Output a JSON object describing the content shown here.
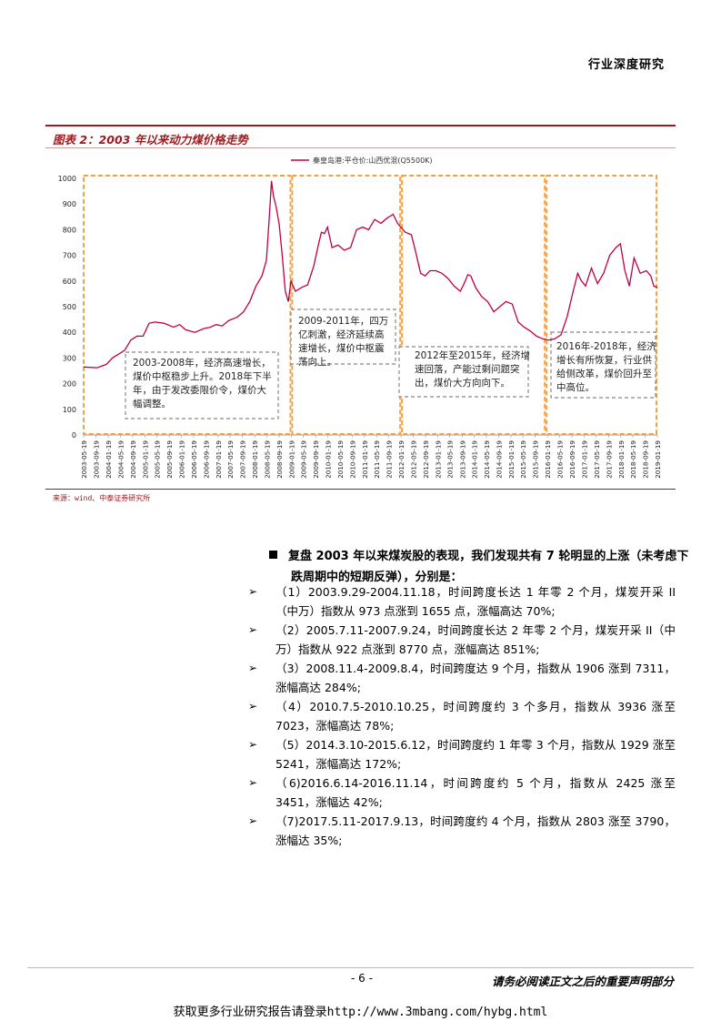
{
  "header": {
    "label": "行业深度研究"
  },
  "figure": {
    "title": "图表 2：2003 年以来动力煤价格走势",
    "source": "来源：wind、中泰证券研究所"
  },
  "chart_data": {
    "type": "line",
    "legend": "秦皇岛港:平仓价:山西优混(Q5500K)",
    "legend_position": "top-center",
    "ylim": [
      0,
      1000
    ],
    "yticks": [
      "0",
      "100",
      "200",
      "300",
      "400",
      "500",
      "600",
      "700",
      "800",
      "900",
      "1000"
    ],
    "xticks": [
      "2003-05-19",
      "2003-09-19",
      "2004-01-19",
      "2004-05-19",
      "2004-09-19",
      "2005-01-19",
      "2005-05-19",
      "2005-09-19",
      "2006-01-19",
      "2006-05-19",
      "2006-09-19",
      "2007-01-19",
      "2007-05-19",
      "2007-09-19",
      "2008-01-19",
      "2008-05-19",
      "2008-09-19",
      "2009-01-19",
      "2009-05-19",
      "2009-09-19",
      "2010-01-19",
      "2010-05-19",
      "2010-09-19",
      "2011-01-19",
      "2011-05-19",
      "2011-09-19",
      "2012-01-19",
      "2012-05-19",
      "2012-09-19",
      "2013-01-19",
      "2013-05-19",
      "2013-09-19",
      "2014-01-19",
      "2014-05-19",
      "2014-09-19",
      "2015-01-19",
      "2015-05-19",
      "2015-09-19",
      "2016-01-19",
      "2016-05-19",
      "2016-09-19",
      "2017-01-19",
      "2017-05-19",
      "2017-09-19",
      "2018-01-19",
      "2018-05-19",
      "2018-09-19",
      "2019-01-19"
    ],
    "series": [
      {
        "name": "秦皇岛港:平仓价:山西优混(Q5500K)",
        "color": "#c00040",
        "points": [
          [
            "2003-05-19",
            265
          ],
          [
            "2003-10-01",
            262
          ],
          [
            "2004-01-01",
            275
          ],
          [
            "2004-03-01",
            300
          ],
          [
            "2004-05-01",
            315
          ],
          [
            "2004-07-01",
            330
          ],
          [
            "2004-09-01",
            370
          ],
          [
            "2004-11-01",
            385
          ],
          [
            "2005-01-01",
            385
          ],
          [
            "2005-03-01",
            435
          ],
          [
            "2005-05-01",
            440
          ],
          [
            "2005-08-01",
            435
          ],
          [
            "2005-11-01",
            420
          ],
          [
            "2006-01-01",
            430
          ],
          [
            "2006-03-01",
            410
          ],
          [
            "2006-06-01",
            400
          ],
          [
            "2006-09-01",
            415
          ],
          [
            "2006-11-01",
            420
          ],
          [
            "2007-01-01",
            430
          ],
          [
            "2007-03-01",
            425
          ],
          [
            "2007-05-01",
            445
          ],
          [
            "2007-08-01",
            460
          ],
          [
            "2007-10-01",
            480
          ],
          [
            "2007-12-01",
            520
          ],
          [
            "2008-02-01",
            580
          ],
          [
            "2008-04-01",
            620
          ],
          [
            "2008-05-15",
            680
          ],
          [
            "2008-06-15",
            860
          ],
          [
            "2008-07-05",
            990
          ],
          [
            "2008-07-25",
            930
          ],
          [
            "2008-08-20",
            890
          ],
          [
            "2008-09-20",
            820
          ],
          [
            "2008-10-20",
            700
          ],
          [
            "2008-11-20",
            560
          ],
          [
            "2008-12-20",
            520
          ],
          [
            "2009-01-15",
            600
          ],
          [
            "2009-03-01",
            560
          ],
          [
            "2009-05-01",
            575
          ],
          [
            "2009-07-01",
            585
          ],
          [
            "2009-09-01",
            660
          ],
          [
            "2009-10-15",
            740
          ],
          [
            "2009-11-15",
            790
          ],
          [
            "2009-12-15",
            785
          ],
          [
            "2010-01-15",
            810
          ],
          [
            "2010-03-01",
            730
          ],
          [
            "2010-05-01",
            740
          ],
          [
            "2010-07-01",
            720
          ],
          [
            "2010-09-01",
            730
          ],
          [
            "2010-11-01",
            800
          ],
          [
            "2011-01-01",
            810
          ],
          [
            "2011-03-01",
            800
          ],
          [
            "2011-05-01",
            840
          ],
          [
            "2011-07-01",
            825
          ],
          [
            "2011-09-01",
            845
          ],
          [
            "2011-11-01",
            860
          ],
          [
            "2011-12-15",
            825
          ],
          [
            "2012-01-15",
            810
          ],
          [
            "2012-03-01",
            790
          ],
          [
            "2012-05-01",
            780
          ],
          [
            "2012-06-15",
            710
          ],
          [
            "2012-08-01",
            630
          ],
          [
            "2012-09-15",
            620
          ],
          [
            "2012-11-01",
            640
          ],
          [
            "2013-01-01",
            640
          ],
          [
            "2013-03-01",
            630
          ],
          [
            "2013-05-01",
            610
          ],
          [
            "2013-07-01",
            580
          ],
          [
            "2013-09-01",
            560
          ],
          [
            "2013-10-15",
            595
          ],
          [
            "2013-11-15",
            625
          ],
          [
            "2013-12-15",
            620
          ],
          [
            "2014-02-01",
            575
          ],
          [
            "2014-04-01",
            540
          ],
          [
            "2014-06-01",
            520
          ],
          [
            "2014-08-01",
            480
          ],
          [
            "2014-10-01",
            500
          ],
          [
            "2014-12-01",
            520
          ],
          [
            "2015-02-01",
            510
          ],
          [
            "2015-04-01",
            440
          ],
          [
            "2015-06-01",
            420
          ],
          [
            "2015-08-01",
            405
          ],
          [
            "2015-10-01",
            385
          ],
          [
            "2015-12-01",
            375
          ],
          [
            "2016-02-01",
            370
          ],
          [
            "2016-04-01",
            375
          ],
          [
            "2016-06-01",
            390
          ],
          [
            "2016-08-01",
            460
          ],
          [
            "2016-10-01",
            560
          ],
          [
            "2016-11-15",
            630
          ],
          [
            "2016-12-15",
            605
          ],
          [
            "2017-02-01",
            580
          ],
          [
            "2017-04-01",
            650
          ],
          [
            "2017-06-01",
            590
          ],
          [
            "2017-08-01",
            630
          ],
          [
            "2017-10-01",
            700
          ],
          [
            "2017-12-01",
            730
          ],
          [
            "2018-01-15",
            745
          ],
          [
            "2018-03-01",
            640
          ],
          [
            "2018-04-15",
            580
          ],
          [
            "2018-06-01",
            690
          ],
          [
            "2018-08-01",
            630
          ],
          [
            "2018-10-01",
            640
          ],
          [
            "2018-11-15",
            620
          ],
          [
            "2018-12-15",
            580
          ],
          [
            "2019-01-19",
            575
          ]
        ]
      }
    ],
    "annotations": [
      {
        "text": "2003-2008年，经济高速增长，煤价中枢稳步上升。2018年下半年，由于发改委限价令，煤价大幅调整。"
      },
      {
        "text": "2009-2011年，四万亿刺激，经济延续高速增长，煤价中枢震荡向上。"
      },
      {
        "text": "2012年至2015年，经济增速回落，产能过剩问题突出，煤价大方向向下。"
      },
      {
        "text": "2016年-2018年，经济增长有所恢复，行业供给侧改革，煤价回升至中高位。"
      }
    ]
  },
  "body": {
    "lead": "复盘 2003 年以来煤炭股的表现，我们发现共有 7 轮明显的上涨（未考虑下跌周期中的短期反弹），分别是：",
    "items": [
      "（1）2003.9.29-2004.11.18，时间跨度长达 1 年零 2 个月，煤炭开采 II（中万）指数从 973 点涨到 1655 点，涨幅高达 70%;",
      "（2）2005.7.11-2007.9.24，时间跨度长达 2 年零 2 个月，煤炭开采 II（中万）指数从 922 点涨到 8770 点，涨幅高达 851%;",
      "（3）2008.11.4-2009.8.4，时间跨度达 9 个月，指数从 1906 涨到 7311，涨幅高达 284%;",
      "（4）2010.7.5-2010.10.25，时间跨度约 3 个多月，指数从 3936 涨至 7023，涨幅高达 78%;",
      "（5）2014.3.10-2015.6.12，时间跨度约 1 年零 3 个月，指数从 1929 涨至 5241，涨幅高达 172%;",
      "（6)2016.6.14-2016.11.14，时间跨度约 5 个月，指数从 2425 涨至 3451，涨幅达 42%;",
      "（7)2017.5.11-2017.9.13，时间跨度约 4 个月，指数从 2803 涨至 3790，涨幅达 35%;"
    ]
  },
  "footer": {
    "page": "- 6 -",
    "disclaimer": "请务必阅读正文之后的重要声明部分",
    "link": "获取更多行业研究报告请登录http://www.3mbang.com/hybg.html"
  }
}
